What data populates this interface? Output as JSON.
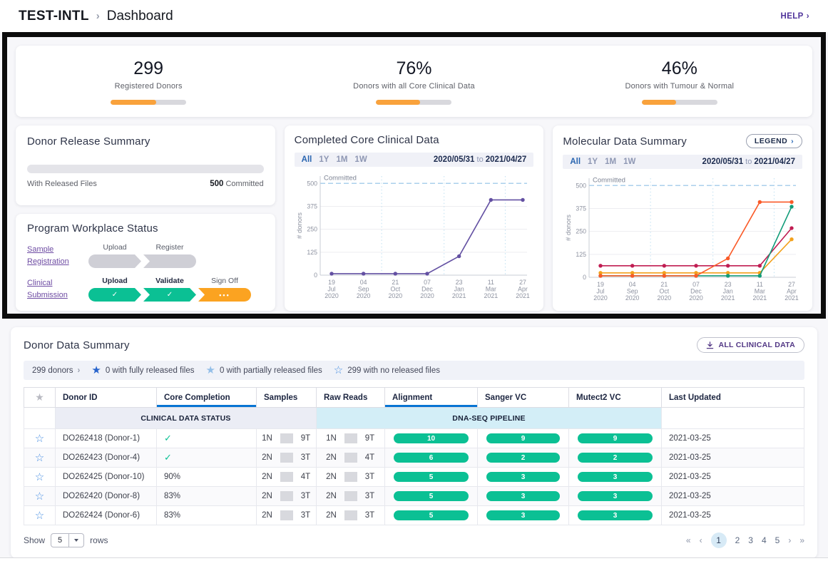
{
  "header": {
    "program": "TEST-INTL",
    "separator": "›",
    "page": "Dashboard",
    "help_label": "HELP",
    "help_chevron": "›"
  },
  "icons": {
    "star_filled": "★",
    "star_outline": "☆",
    "check": "✓",
    "dots": "•••",
    "chevron_right": "›"
  },
  "stats": [
    {
      "value": "299",
      "label": "Registered Donors",
      "fill_pct": 60
    },
    {
      "value": "76%",
      "label": "Donors with all Core Clinical Data",
      "fill_pct": 58
    },
    {
      "value": "46%",
      "label": "Donors with Tumour & Normal",
      "fill_pct": 45
    }
  ],
  "donor_release": {
    "title": "Donor Release Summary",
    "left_label": "With Released Files",
    "committed_value": "500",
    "committed_label": "Committed"
  },
  "workplace": {
    "title": "Program Workplace Status",
    "rows": [
      {
        "link": "Sample Registration",
        "steps": [
          {
            "label": "Upload",
            "state": "pending"
          },
          {
            "label": "Register",
            "state": "pending"
          }
        ]
      },
      {
        "link": "Clinical Submission",
        "steps": [
          {
            "label": "Upload",
            "state": "done"
          },
          {
            "label": "Validate",
            "state": "done"
          },
          {
            "label": "Sign Off",
            "state": "active"
          }
        ]
      }
    ]
  },
  "clinical_chart": {
    "title": "Completed Core Clinical Data",
    "tabs": [
      "All",
      "1Y",
      "1M",
      "1W"
    ],
    "active_tab": "All",
    "date_from": "2020/05/31",
    "date_sep": "to",
    "date_to": "2021/04/27"
  },
  "molecular_chart": {
    "title": "Molecular Data Summary",
    "legend_label": "LEGEND",
    "legend_chevron": "›",
    "tabs": [
      "All",
      "1Y",
      "1M",
      "1W"
    ],
    "active_tab": "All",
    "date_from": "2020/05/31",
    "date_sep": "to",
    "date_to": "2021/04/27"
  },
  "chart_data": [
    {
      "type": "line",
      "title": "Completed Core Clinical Data",
      "xlabel": "",
      "ylabel": "# donors",
      "yticks": [
        0,
        125,
        250,
        375,
        500
      ],
      "ylim": [
        0,
        540
      ],
      "categories": [
        "19 Jul 2020",
        "04 Sep 2020",
        "21 Oct 2020",
        "07 Dec 2020",
        "23 Jan 2021",
        "11 Mar 2021",
        "27 Apr 2021"
      ],
      "committed_line": {
        "value": 500,
        "label": "Committed",
        "color": "#abd0ec"
      },
      "vgridlines": [
        1.57,
        3.53,
        5.45
      ],
      "grid": true,
      "legend": "hidden",
      "series": [
        {
          "name": "clinical-completion",
          "color": "#6350a2",
          "values": [
            8,
            8,
            8,
            8,
            103,
            410,
            410
          ]
        }
      ]
    },
    {
      "type": "line",
      "title": "Molecular Data Summary",
      "xlabel": "",
      "ylabel": "# donors",
      "yticks": [
        0,
        125,
        250,
        375,
        500
      ],
      "ylim": [
        0,
        540
      ],
      "categories": [
        "19 Jul 2020",
        "04 Sep 2020",
        "21 Oct 2020",
        "07 Dec 2020",
        "23 Jan 2021",
        "11 Mar 2021",
        "27 Apr 2021"
      ],
      "committed_line": {
        "value": 500,
        "label": "Committed",
        "color": "#abd0ec"
      },
      "vgridlines": [
        1.57,
        3.53,
        5.45
      ],
      "grid": true,
      "legend": "collapsed",
      "series": [
        {
          "name": "series-gold",
          "color": "#f3a11c",
          "values": [
            24,
            24,
            24,
            24,
            24,
            24,
            207
          ]
        },
        {
          "name": "series-crimson",
          "color": "#c01d52",
          "values": [
            63,
            63,
            63,
            63,
            63,
            63,
            268
          ]
        },
        {
          "name": "series-teal",
          "color": "#119c79",
          "values": [
            8,
            8,
            8,
            8,
            8,
            8,
            385
          ]
        },
        {
          "name": "series-tomato",
          "color": "#fa5a28",
          "values": [
            8,
            8,
            8,
            8,
            103,
            410,
            410
          ]
        }
      ]
    }
  ],
  "donor_table": {
    "title": "Donor Data Summary",
    "download_button": "ALL CLINICAL DATA",
    "filter_bar": {
      "donor_count_label": "299 donors",
      "legend": [
        {
          "icon": "star-filled-dark",
          "text": "0 with fully released files"
        },
        {
          "icon": "star-filled-light",
          "text": "0 with partially released files"
        },
        {
          "icon": "star-outline",
          "text": "299 with no released files"
        }
      ]
    },
    "group_clinical": "CLINICAL DATA STATUS",
    "group_dnaseq": "DNA-SEQ PIPELINE",
    "columns": [
      "Donor ID",
      "Core Completion",
      "Samples",
      "Raw Reads",
      "Alignment",
      "Sanger VC",
      "Mutect2 VC",
      "Last Updated"
    ],
    "rows": [
      {
        "donor_id": "DO262418 (Donor-1)",
        "core_completion": "✓",
        "samples_n": "1N",
        "samples_t": "9T",
        "raw_n": "1N",
        "raw_t": "9T",
        "alignment": 10,
        "sanger": 9,
        "mutect2": 9,
        "last_updated": "2021-03-25"
      },
      {
        "donor_id": "DO262423 (Donor-4)",
        "core_completion": "✓",
        "samples_n": "2N",
        "samples_t": "3T",
        "raw_n": "2N",
        "raw_t": "4T",
        "alignment": 6,
        "sanger": 2,
        "mutect2": 2,
        "last_updated": "2021-03-25"
      },
      {
        "donor_id": "DO262425 (Donor-10)",
        "core_completion": "90%",
        "samples_n": "2N",
        "samples_t": "4T",
        "raw_n": "2N",
        "raw_t": "3T",
        "alignment": 5,
        "sanger": 3,
        "mutect2": 3,
        "last_updated": "2021-03-25"
      },
      {
        "donor_id": "DO262420 (Donor-8)",
        "core_completion": "83%",
        "samples_n": "2N",
        "samples_t": "3T",
        "raw_n": "2N",
        "raw_t": "3T",
        "alignment": 5,
        "sanger": 3,
        "mutect2": 3,
        "last_updated": "2021-03-25"
      },
      {
        "donor_id": "DO262424 (Donor-6)",
        "core_completion": "83%",
        "samples_n": "2N",
        "samples_t": "3T",
        "raw_n": "2N",
        "raw_t": "3T",
        "alignment": 5,
        "sanger": 3,
        "mutect2": 3,
        "last_updated": "2021-03-25"
      }
    ],
    "footer": {
      "show_label": "Show",
      "page_size": "5",
      "rows_label": "rows",
      "pages": [
        "«",
        "‹",
        "1",
        "2",
        "3",
        "4",
        "5",
        "›",
        "»"
      ],
      "active_page": "1"
    }
  }
}
